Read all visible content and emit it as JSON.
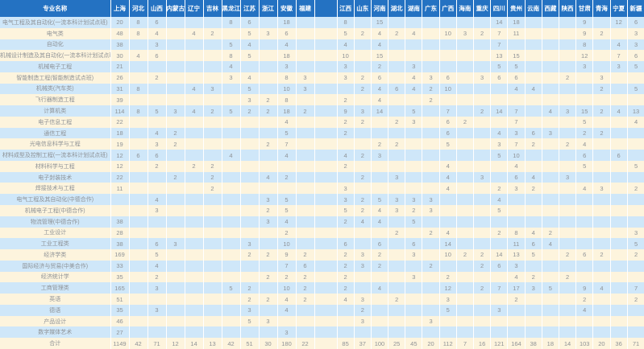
{
  "colors": {
    "header_bg": "#2472c2",
    "header_text": "#ffffff",
    "row_blue": "#cfe7f9",
    "row_cream": "#fdf4dd",
    "cell_text": "#8e9296"
  },
  "table": {
    "name_header": "专业名称",
    "columns": [
      "上海",
      "河北",
      "山西",
      "内蒙古",
      "辽宁",
      "吉林",
      "黑龙江",
      "江苏",
      "浙江",
      "安徽",
      "福建",
      "",
      "江西",
      "山东",
      "河南",
      "湖北",
      "湖南",
      "广东",
      "广西",
      "海南",
      "重庆",
      "四川",
      "贵州",
      "云南",
      "西藏",
      "陕西",
      "甘肃",
      "青海",
      "宁夏",
      "新疆"
    ],
    "rows": [
      {
        "name": "电气工程及其自动化(一流本科计划试点班)",
        "cells": [
          "20",
          "8",
          "6",
          "",
          "",
          "",
          "8",
          "6",
          "",
          "18",
          "",
          "",
          "8",
          "",
          "15",
          "",
          "",
          "",
          "",
          "",
          "",
          "14",
          "18",
          "",
          "",
          "",
          "9",
          "",
          "12",
          "6"
        ]
      },
      {
        "name": "电气类",
        "cells": [
          "48",
          "8",
          "4",
          "",
          "4",
          "2",
          "",
          "5",
          "3",
          "6",
          "",
          "",
          "5",
          "2",
          "4",
          "2",
          "4",
          "",
          "10",
          "3",
          "2",
          "7",
          "11",
          "",
          "",
          "",
          "9",
          "2",
          "",
          "3"
        ]
      },
      {
        "name": "自动化",
        "cells": [
          "38",
          "",
          "3",
          "",
          "",
          "",
          "5",
          "4",
          "",
          "4",
          "",
          "",
          "4",
          "",
          "4",
          "",
          "",
          "",
          "",
          "",
          "",
          "7",
          "",
          "",
          "",
          "",
          "8",
          "",
          "4",
          "3"
        ]
      },
      {
        "name": "机械设计制造及其自动化(一流本科计划试点班)",
        "cells": [
          "30",
          "4",
          "6",
          "",
          "",
          "",
          "8",
          "5",
          "",
          "18",
          "",
          "",
          "10",
          "",
          "15",
          "",
          "",
          "",
          "",
          "",
          "",
          "13",
          "15",
          "",
          "",
          "",
          "12",
          "",
          "7",
          "6"
        ]
      },
      {
        "name": "机械电子工程",
        "cells": [
          "21",
          "",
          "",
          "",
          "",
          "",
          "4",
          "",
          "",
          "3",
          "",
          "",
          "3",
          "",
          "2",
          "",
          "3",
          "",
          "",
          "",
          "",
          "5",
          "5",
          "",
          "",
          "",
          "3",
          "",
          "3",
          "5"
        ]
      },
      {
        "name": "智能制造工程(智能制造试点班)",
        "cells": [
          "26",
          "",
          "2",
          "",
          "",
          "",
          "3",
          "4",
          "",
          "8",
          "3",
          "",
          "3",
          "2",
          "6",
          "",
          "4",
          "3",
          "6",
          "",
          "3",
          "6",
          "6",
          "",
          "",
          "2",
          "",
          "3",
          "",
          ""
        ]
      },
      {
        "name": "机械类(汽车类)",
        "cells": [
          "31",
          "8",
          "",
          "",
          "4",
          "3",
          "",
          "5",
          "",
          "10",
          "3",
          "",
          "",
          "2",
          "4",
          "6",
          "4",
          "2",
          "10",
          "",
          "",
          "",
          "4",
          "4",
          "",
          "",
          "",
          "2",
          "",
          "5"
        ]
      },
      {
        "name": "飞行器制造工程",
        "cells": [
          "39",
          "",
          "",
          "",
          "",
          "",
          "",
          "3",
          "2",
          "8",
          "",
          "",
          "2",
          "",
          "4",
          "",
          "",
          "2",
          "",
          "",
          "",
          "",
          "",
          "",
          "",
          "",
          "",
          "",
          "",
          ""
        ]
      },
      {
        "name": "计算机类",
        "cells": [
          "114",
          "8",
          "5",
          "3",
          "4",
          "2",
          "5",
          "2",
          "2",
          "18",
          "2",
          "",
          "9",
          "3",
          "14",
          "",
          "5",
          "",
          "7",
          "",
          "2",
          "14",
          "7",
          "",
          "4",
          "3",
          "15",
          "2",
          "4",
          "13"
        ]
      },
      {
        "name": "电子信息工程",
        "cells": [
          "22",
          "",
          "",
          "",
          "",
          "",
          "",
          "",
          "",
          "4",
          "",
          "",
          "2",
          "2",
          "",
          "2",
          "3",
          "",
          "6",
          "2",
          "",
          "",
          "7",
          "",
          "",
          "",
          "5",
          "",
          "",
          "4"
        ]
      },
      {
        "name": "通信工程",
        "cells": [
          "18",
          "",
          "4",
          "2",
          "",
          "",
          "",
          "",
          "",
          "5",
          "",
          "",
          "2",
          "",
          "",
          "",
          "",
          "",
          "6",
          "",
          "",
          "4",
          "3",
          "6",
          "3",
          "",
          "2",
          "2",
          "",
          ""
        ]
      },
      {
        "name": "光电信息科学与工程",
        "cells": [
          "19",
          "",
          "3",
          "2",
          "",
          "",
          "",
          "",
          "2",
          "7",
          "",
          "",
          "",
          "",
          "2",
          "2",
          "",
          "",
          "5",
          "",
          "",
          "3",
          "7",
          "2",
          "",
          "2",
          "4",
          "",
          "",
          ""
        ]
      },
      {
        "name": "材料成型及控制工程(一流本科计划试点班)",
        "cells": [
          "12",
          "6",
          "6",
          "",
          "",
          "",
          "4",
          "",
          "",
          "4",
          "",
          "",
          "4",
          "2",
          "3",
          "",
          "",
          "",
          "",
          "",
          "",
          "5",
          "10",
          "",
          "",
          "",
          "6",
          "",
          "6",
          ""
        ]
      },
      {
        "name": "材料科学与工程",
        "cells": [
          "12",
          "",
          "2",
          "",
          "2",
          "2",
          "",
          "",
          "",
          "",
          "",
          "",
          "2",
          "",
          "",
          "",
          "",
          "",
          "4",
          "",
          "",
          "",
          "4",
          "",
          "",
          "",
          "5",
          "",
          "",
          "5"
        ]
      },
      {
        "name": "电子封装技术",
        "cells": [
          "22",
          "",
          "",
          "2",
          "",
          "2",
          "",
          "",
          "4",
          "2",
          "",
          "",
          "",
          "2",
          "",
          "3",
          "",
          "",
          "4",
          "",
          "3",
          "",
          "6",
          "4",
          "",
          "3",
          "",
          "",
          "",
          ""
        ]
      },
      {
        "name": "焊接技术与工程",
        "cells": [
          "11",
          "",
          "",
          "",
          "",
          "2",
          "",
          "",
          "",
          "",
          "",
          "",
          "3",
          "",
          "",
          "",
          "",
          "",
          "4",
          "",
          "",
          "2",
          "3",
          "2",
          "",
          "",
          "4",
          "3",
          "",
          "2"
        ]
      },
      {
        "name": "电气工程及其自动化(中德合作)",
        "cells": [
          "",
          "",
          "4",
          "",
          "",
          "",
          "",
          "",
          "3",
          "5",
          "",
          "",
          "3",
          "2",
          "5",
          "3",
          "3",
          "3",
          "",
          "",
          "",
          "4",
          "",
          "",
          "",
          "",
          "",
          "",
          "",
          ""
        ]
      },
      {
        "name": "机械电子工程(中德合作)",
        "cells": [
          "",
          "",
          "3",
          "",
          "",
          "",
          "",
          "",
          "2",
          "5",
          "",
          "",
          "5",
          "2",
          "4",
          "3",
          "2",
          "3",
          "",
          "",
          "",
          "5",
          "",
          "",
          "",
          "",
          "",
          "",
          "",
          ""
        ]
      },
      {
        "name": "物流管理(中德合作)",
        "cells": [
          "38",
          "",
          "",
          "",
          "",
          "",
          "",
          "",
          "3",
          "4",
          "",
          "",
          "2",
          "4",
          "4",
          "",
          "5",
          "",
          "",
          "",
          "",
          "",
          "",
          "",
          "",
          "",
          "",
          "",
          "",
          ""
        ]
      },
      {
        "name": "工业设计",
        "cells": [
          "28",
          "",
          "",
          "",
          "",
          "",
          "",
          "",
          "",
          "2",
          "",
          "",
          "",
          "",
          "",
          "2",
          "",
          "2",
          "4",
          "",
          "",
          "2",
          "8",
          "4",
          "2",
          "",
          "",
          "",
          "",
          "3"
        ]
      },
      {
        "name": "工业工程类",
        "cells": [
          "38",
          "",
          "6",
          "3",
          "",
          "",
          "",
          "3",
          "",
          "10",
          "",
          "",
          "6",
          "",
          "6",
          "",
          "6",
          "",
          "14",
          "",
          "",
          "",
          "11",
          "6",
          "4",
          "",
          "",
          "",
          "",
          "5"
        ]
      },
      {
        "name": "经济学类",
        "cells": [
          "169",
          "",
          "5",
          "",
          "",
          "",
          "",
          "2",
          "2",
          "9",
          "2",
          "",
          "2",
          "3",
          "2",
          "",
          "3",
          "",
          "10",
          "2",
          "2",
          "14",
          "13",
          "5",
          "",
          "2",
          "6",
          "2",
          "",
          "2"
        ]
      },
      {
        "name": "国际经济与贸易(中美合作)",
        "cells": [
          "33",
          "",
          "4",
          "",
          "",
          "",
          "",
          "",
          "",
          "7",
          "6",
          "",
          "2",
          "3",
          "2",
          "",
          "",
          "2",
          "",
          "",
          "2",
          "6",
          "3",
          "",
          "",
          "",
          "",
          "",
          "",
          ""
        ]
      },
      {
        "name": "经济统计学",
        "cells": [
          "35",
          "",
          "2",
          "",
          "",
          "",
          "",
          "",
          "2",
          "2",
          "2",
          "",
          "2",
          "",
          "",
          "",
          "3",
          "",
          "2",
          "",
          "",
          "",
          "4",
          "2",
          "",
          "2",
          "",
          "",
          "",
          ""
        ]
      },
      {
        "name": "工商管理类",
        "cells": [
          "165",
          "",
          "3",
          "",
          "",
          "",
          "5",
          "2",
          "",
          "10",
          "2",
          "",
          "2",
          "",
          "4",
          "",
          "",
          "",
          "12",
          "",
          "2",
          "7",
          "17",
          "3",
          "5",
          "",
          "9",
          "4",
          "",
          "7"
        ]
      },
      {
        "name": "英语",
        "cells": [
          "51",
          "",
          "",
          "",
          "",
          "",
          "",
          "2",
          "2",
          "4",
          "2",
          "",
          "4",
          "3",
          "",
          "2",
          "",
          "",
          "3",
          "",
          "",
          "",
          "2",
          "",
          "",
          "",
          "2",
          "",
          "",
          "2"
        ]
      },
      {
        "name": "德语",
        "cells": [
          "35",
          "",
          "3",
          "",
          "",
          "",
          "",
          "3",
          "",
          "4",
          "",
          "",
          "",
          "2",
          "",
          "",
          "",
          "",
          "5",
          "",
          "",
          "3",
          "",
          "",
          "",
          "",
          "4",
          "",
          "",
          ""
        ]
      },
      {
        "name": "产品设计",
        "cells": [
          "46",
          "",
          "",
          "",
          "",
          "",
          "",
          "5",
          "3",
          "",
          "",
          "",
          "",
          "3",
          "",
          "",
          "",
          "3",
          "",
          "",
          "",
          "",
          "",
          "",
          "",
          "",
          "",
          "",
          "",
          ""
        ]
      },
      {
        "name": "数字媒体艺术",
        "cells": [
          "27",
          "",
          "",
          "",
          "",
          "",
          "",
          "",
          "",
          "3",
          "",
          "",
          "",
          "",
          "",
          "",
          "",
          "",
          "",
          "",
          "",
          "",
          "",
          "",
          "",
          "",
          "",
          "",
          "",
          ""
        ]
      },
      {
        "name": "合计",
        "cells": [
          "1149",
          "42",
          "71",
          "12",
          "14",
          "13",
          "42",
          "51",
          "30",
          "180",
          "22",
          "",
          "85",
          "37",
          "100",
          "25",
          "45",
          "20",
          "112",
          "7",
          "16",
          "121",
          "164",
          "38",
          "18",
          "14",
          "103",
          "20",
          "36",
          "71"
        ]
      }
    ]
  }
}
